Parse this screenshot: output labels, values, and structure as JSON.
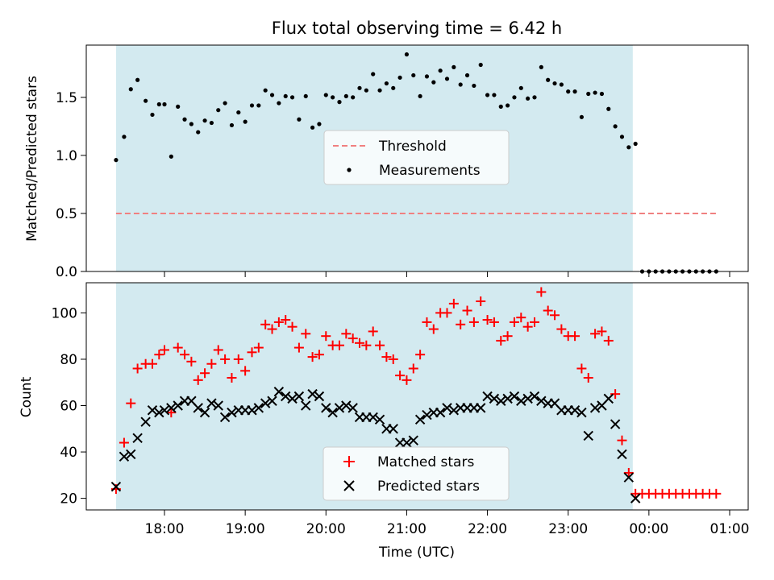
{
  "chart_data": [
    {
      "type": "scatter",
      "title": "Flux total observing time = 6.42 h",
      "xlabel": "",
      "ylabel": "Matched/Predicted stars",
      "ylim": [
        0.0,
        1.95
      ],
      "yticks": [
        0.0,
        0.5,
        1.0,
        1.5
      ],
      "ytick_labels": [
        "0.0",
        "0.5",
        "1.0",
        "1.5"
      ],
      "grid": false,
      "legend_position": "center",
      "shaded_interval": {
        "start": "17:24",
        "end": "23:48",
        "color": "#d3eaf0"
      },
      "series": [
        {
          "name": "Threshold",
          "style": "dashed-line",
          "color": "#f08080",
          "x": [
            "17:24",
            "00:52"
          ],
          "values": [
            0.5,
            0.5
          ]
        },
        {
          "name": "Measurements",
          "style": "dots",
          "color": "#000000",
          "x": [
            "17:24",
            "17:30",
            "17:35",
            "17:40",
            "17:46",
            "17:51",
            "17:56",
            "18:00",
            "18:05",
            "18:10",
            "18:15",
            "18:20",
            "18:25",
            "18:30",
            "18:35",
            "18:40",
            "18:45",
            "18:50",
            "18:55",
            "19:00",
            "19:05",
            "19:10",
            "19:15",
            "19:20",
            "19:25",
            "19:30",
            "19:35",
            "19:40",
            "19:45",
            "19:50",
            "19:55",
            "20:00",
            "20:05",
            "20:10",
            "20:15",
            "20:20",
            "20:25",
            "20:30",
            "20:35",
            "20:40",
            "20:45",
            "20:50",
            "20:55",
            "21:00",
            "21:05",
            "21:10",
            "21:15",
            "21:20",
            "21:25",
            "21:30",
            "21:35",
            "21:40",
            "21:45",
            "21:50",
            "21:55",
            "22:00",
            "22:05",
            "22:10",
            "22:15",
            "22:20",
            "22:25",
            "22:30",
            "22:35",
            "22:40",
            "22:45",
            "22:50",
            "22:55",
            "23:00",
            "23:05",
            "23:10",
            "23:15",
            "23:20",
            "23:25",
            "23:30",
            "23:35",
            "23:40",
            "23:45",
            "23:50",
            "23:55",
            "00:00",
            "00:05",
            "00:10",
            "00:15",
            "00:20",
            "00:25",
            "00:30",
            "00:35",
            "00:40",
            "00:45",
            "00:50"
          ],
          "values": [
            0.96,
            1.16,
            1.57,
            1.65,
            1.47,
            1.35,
            1.44,
            1.44,
            0.99,
            1.42,
            1.31,
            1.27,
            1.2,
            1.3,
            1.28,
            1.39,
            1.45,
            1.26,
            1.37,
            1.29,
            1.43,
            1.43,
            1.56,
            1.52,
            1.45,
            1.51,
            1.5,
            1.31,
            1.51,
            1.24,
            1.27,
            1.52,
            1.5,
            1.46,
            1.51,
            1.5,
            1.58,
            1.56,
            1.7,
            1.56,
            1.62,
            1.58,
            1.67,
            1.87,
            1.69,
            1.51,
            1.68,
            1.63,
            1.73,
            1.66,
            1.76,
            1.61,
            1.69,
            1.6,
            1.78,
            1.52,
            1.52,
            1.42,
            1.43,
            1.5,
            1.58,
            1.49,
            1.5,
            1.76,
            1.65,
            1.62,
            1.61,
            1.55,
            1.55,
            1.33,
            1.53,
            1.54,
            1.53,
            1.4,
            1.25,
            1.16,
            1.07,
            1.1,
            0,
            0,
            0,
            0,
            0,
            0,
            0,
            0,
            0,
            0,
            0,
            0
          ]
        }
      ]
    },
    {
      "type": "scatter",
      "xlabel": "Time (UTC)",
      "ylabel": "Count",
      "ylim": [
        15,
        113
      ],
      "yticks": [
        20,
        40,
        60,
        80,
        100
      ],
      "ytick_labels": [
        "20",
        "40",
        "60",
        "80",
        "100"
      ],
      "xticks": [
        "18:00",
        "19:00",
        "20:00",
        "21:00",
        "22:00",
        "23:00",
        "00:00",
        "01:00"
      ],
      "xtick_labels": [
        "18:00",
        "19:00",
        "20:00",
        "21:00",
        "22:00",
        "23:00",
        "00:00",
        "01:00"
      ],
      "grid": false,
      "legend_position": "lower center",
      "shaded_interval": {
        "start": "17:24",
        "end": "23:48",
        "color": "#d3eaf0"
      },
      "series": [
        {
          "name": "Matched stars",
          "marker": "+",
          "color": "#ff0000",
          "x": [
            "17:24",
            "17:30",
            "17:35",
            "17:40",
            "17:46",
            "17:51",
            "17:56",
            "18:00",
            "18:05",
            "18:10",
            "18:15",
            "18:20",
            "18:25",
            "18:30",
            "18:35",
            "18:40",
            "18:45",
            "18:50",
            "18:55",
            "19:00",
            "19:05",
            "19:10",
            "19:15",
            "19:20",
            "19:25",
            "19:30",
            "19:35",
            "19:40",
            "19:45",
            "19:50",
            "19:55",
            "20:00",
            "20:05",
            "20:10",
            "20:15",
            "20:20",
            "20:25",
            "20:30",
            "20:35",
            "20:40",
            "20:45",
            "20:50",
            "20:55",
            "21:00",
            "21:05",
            "21:10",
            "21:15",
            "21:20",
            "21:25",
            "21:30",
            "21:35",
            "21:40",
            "21:45",
            "21:50",
            "21:55",
            "22:00",
            "22:05",
            "22:10",
            "22:15",
            "22:20",
            "22:25",
            "22:30",
            "22:35",
            "22:40",
            "22:45",
            "22:50",
            "22:55",
            "23:00",
            "23:05",
            "23:10",
            "23:15",
            "23:20",
            "23:25",
            "23:30",
            "23:35",
            "23:40",
            "23:45",
            "23:50",
            "23:55",
            "00:00",
            "00:05",
            "00:10",
            "00:15",
            "00:20",
            "00:25",
            "00:30",
            "00:35",
            "00:40",
            "00:45",
            "00:50"
          ],
          "values": [
            24,
            44,
            61,
            76,
            78,
            78,
            82,
            84,
            57,
            85,
            82,
            79,
            71,
            74,
            78,
            84,
            80,
            72,
            80,
            75,
            83,
            85,
            95,
            93,
            96,
            97,
            94,
            85,
            91,
            81,
            82,
            90,
            86,
            86,
            91,
            89,
            87,
            86,
            92,
            86,
            81,
            80,
            73,
            71,
            76,
            82,
            96,
            93,
            100,
            100,
            104,
            95,
            101,
            96,
            105,
            97,
            96,
            88,
            90,
            96,
            98,
            94,
            96,
            109,
            101,
            99,
            93,
            90,
            90,
            76,
            72,
            91,
            92,
            88,
            65,
            45,
            31,
            22,
            22,
            22,
            22,
            22,
            22,
            22,
            22,
            22,
            22,
            22,
            22,
            22
          ]
        },
        {
          "name": "Predicted stars",
          "marker": "x",
          "color": "#000000",
          "x": [
            "17:24",
            "17:30",
            "17:35",
            "17:40",
            "17:46",
            "17:51",
            "17:56",
            "18:00",
            "18:05",
            "18:10",
            "18:15",
            "18:20",
            "18:25",
            "18:30",
            "18:35",
            "18:40",
            "18:45",
            "18:50",
            "18:55",
            "19:00",
            "19:05",
            "19:10",
            "19:15",
            "19:20",
            "19:25",
            "19:30",
            "19:35",
            "19:40",
            "19:45",
            "19:50",
            "19:55",
            "20:00",
            "20:05",
            "20:10",
            "20:15",
            "20:20",
            "20:25",
            "20:30",
            "20:35",
            "20:40",
            "20:45",
            "20:50",
            "20:55",
            "21:00",
            "21:05",
            "21:10",
            "21:15",
            "21:20",
            "21:25",
            "21:30",
            "21:35",
            "21:40",
            "21:45",
            "21:50",
            "21:55",
            "22:00",
            "22:05",
            "22:10",
            "22:15",
            "22:20",
            "22:25",
            "22:30",
            "22:35",
            "22:40",
            "22:45",
            "22:50",
            "22:55",
            "23:00",
            "23:05",
            "23:10",
            "23:15",
            "23:20",
            "23:25",
            "23:30",
            "23:35",
            "23:40",
            "23:45",
            "23:50"
          ],
          "values": [
            25,
            38,
            39,
            46,
            53,
            58,
            57,
            58,
            59,
            60,
            62,
            62,
            59,
            57,
            61,
            60,
            55,
            57,
            58,
            58,
            58,
            59,
            61,
            62,
            66,
            64,
            63,
            64,
            60,
            65,
            64,
            59,
            57,
            59,
            60,
            59,
            55,
            55,
            55,
            54,
            50,
            50,
            44,
            44,
            45,
            54,
            56,
            57,
            57,
            59,
            58,
            59,
            59,
            59,
            59,
            64,
            63,
            62,
            63,
            64,
            62,
            63,
            64,
            62,
            61,
            61,
            58,
            58,
            58,
            57,
            47,
            59,
            60,
            63,
            52,
            39,
            29,
            20
          ]
        }
      ]
    }
  ]
}
